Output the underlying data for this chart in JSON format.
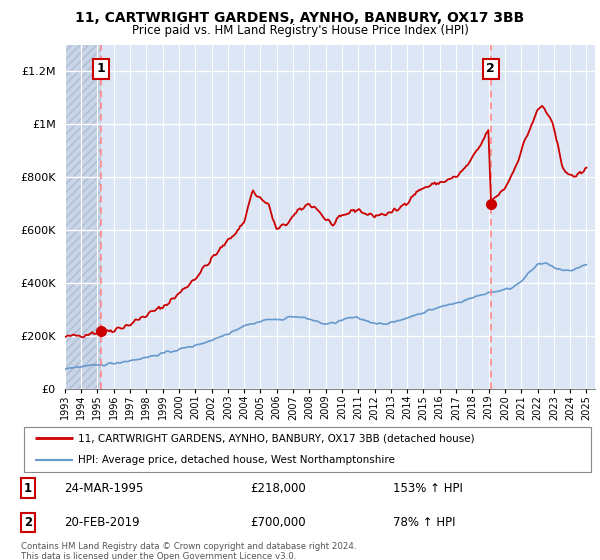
{
  "title": "11, CARTWRIGHT GARDENS, AYNHO, BANBURY, OX17 3BB",
  "subtitle": "Price paid vs. HM Land Registry's House Price Index (HPI)",
  "legend_line1": "11, CARTWRIGHT GARDENS, AYNHO, BANBURY, OX17 3BB (detached house)",
  "legend_line2": "HPI: Average price, detached house, West Northamptonshire",
  "footnote1": "Contains HM Land Registry data © Crown copyright and database right 2024.",
  "footnote2": "This data is licensed under the Open Government Licence v3.0.",
  "sale1_label": "1",
  "sale1_date": "24-MAR-1995",
  "sale1_price": "£218,000",
  "sale1_hpi": "153% ↑ HPI",
  "sale2_label": "2",
  "sale2_date": "20-FEB-2019",
  "sale2_price": "£700,000",
  "sale2_hpi": "78% ↑ HPI",
  "house_color": "#cc0000",
  "hpi_color": "#6699cc",
  "bg_color": "#dce6f5",
  "hatch_bg_color": "#c8d4e8",
  "hatch_line_color": "#b0bcd0",
  "grid_color": "#ffffff",
  "dashed_color": "#ff8888",
  "ylim": [
    0,
    1300000
  ],
  "yticks": [
    0,
    200000,
    400000,
    600000,
    800000,
    1000000,
    1200000
  ],
  "ytick_labels": [
    "£0",
    "£200K",
    "£400K",
    "£600K",
    "£800K",
    "£1M",
    "£1.2M"
  ],
  "sale1_x": 1995.23,
  "sale1_y": 218000,
  "sale2_x": 2019.13,
  "sale2_y": 700000,
  "xmin": 1993.0,
  "xmax": 2025.5
}
